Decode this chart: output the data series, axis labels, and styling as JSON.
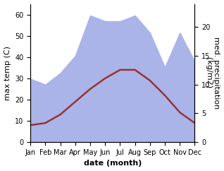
{
  "months": [
    "Jan",
    "Feb",
    "Mar",
    "Apr",
    "May",
    "Jun",
    "Jul",
    "Aug",
    "Sep",
    "Oct",
    "Nov",
    "Dec"
  ],
  "temp_c": [
    8,
    9,
    13,
    19,
    25,
    30,
    34,
    34,
    29,
    22,
    14,
    9
  ],
  "precip_mm": [
    11,
    10,
    12,
    15,
    22,
    21,
    21,
    22,
    19,
    13,
    19,
    14
  ],
  "temp_color": "#993333",
  "precip_color": "#aab4e8",
  "left_ylim": [
    0,
    65
  ],
  "right_ylim": [
    0,
    24
  ],
  "left_yticks": [
    0,
    10,
    20,
    30,
    40,
    50,
    60
  ],
  "right_yticks": [
    0,
    5,
    10,
    15,
    20
  ],
  "ylabel_left": "max temp (C)",
  "ylabel_right": "med. precipitation\n(kg/m2)",
  "xlabel": "date (month)",
  "tick_fontsize": 7,
  "label_fontsize": 8
}
